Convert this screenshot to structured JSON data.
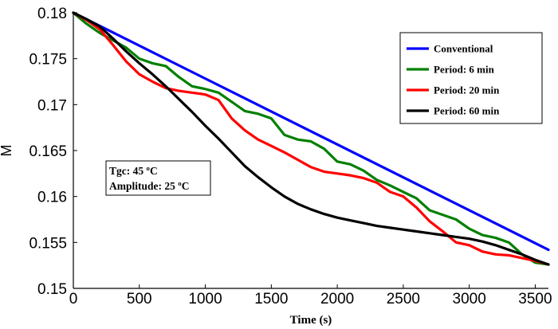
{
  "chart_data": {
    "type": "line",
    "title": "",
    "xlabel": "Time (s)",
    "ylabel": "M",
    "xlim": [
      0,
      3600
    ],
    "ylim": [
      0.15,
      0.18
    ],
    "xticks": [
      0,
      500,
      1000,
      1500,
      2000,
      2500,
      3000,
      3500
    ],
    "xtick_labels": [
      "0",
      "500",
      "1000",
      "1500",
      "2000",
      "2500",
      "3000",
      "3500"
    ],
    "yticks": [
      0.15,
      0.155,
      0.16,
      0.165,
      0.17,
      0.175,
      0.18
    ],
    "ytick_labels": [
      "0.15",
      "0.155",
      "0.16",
      "0.165",
      "0.17",
      "0.175",
      "0.18"
    ],
    "grid": false,
    "legend_position": "top-right",
    "series": [
      {
        "name": "Conventional",
        "color": "#0000ff",
        "x": [
          0,
          3600
        ],
        "y": [
          0.18,
          0.1542
        ]
      },
      {
        "name": "Period: 6 min",
        "color": "#008000",
        "x": [
          0,
          100,
          200,
          300,
          400,
          500,
          600,
          700,
          800,
          900,
          1000,
          1100,
          1200,
          1300,
          1400,
          1500,
          1600,
          1700,
          1800,
          1900,
          2000,
          2100,
          2200,
          2300,
          2400,
          2500,
          2600,
          2700,
          2800,
          2900,
          3000,
          3100,
          3200,
          3300,
          3400,
          3500,
          3600
        ],
        "y": [
          0.18,
          0.1788,
          0.1778,
          0.177,
          0.1762,
          0.175,
          0.1745,
          0.1742,
          0.173,
          0.172,
          0.1717,
          0.1713,
          0.1703,
          0.1693,
          0.169,
          0.1685,
          0.1667,
          0.1662,
          0.166,
          0.1652,
          0.1638,
          0.1635,
          0.1628,
          0.1618,
          0.1612,
          0.1605,
          0.1598,
          0.1585,
          0.158,
          0.1575,
          0.1565,
          0.1558,
          0.1555,
          0.155,
          0.1537,
          0.1528,
          0.1526
        ]
      },
      {
        "name": "Period: 20 min",
        "color": "#ff0000",
        "x": [
          0,
          100,
          200,
          300,
          400,
          500,
          600,
          700,
          800,
          900,
          1000,
          1100,
          1200,
          1300,
          1400,
          1500,
          1600,
          1700,
          1800,
          1900,
          2000,
          2100,
          2200,
          2300,
          2400,
          2500,
          2600,
          2700,
          2800,
          2900,
          3000,
          3100,
          3200,
          3300,
          3400,
          3500,
          3600
        ],
        "y": [
          0.18,
          0.1792,
          0.1782,
          0.1765,
          0.1747,
          0.1733,
          0.1725,
          0.1718,
          0.1715,
          0.1713,
          0.1711,
          0.1705,
          0.1685,
          0.1672,
          0.1662,
          0.1655,
          0.1648,
          0.164,
          0.1632,
          0.1627,
          0.1625,
          0.1623,
          0.162,
          0.1615,
          0.1605,
          0.16,
          0.1588,
          0.1573,
          0.1562,
          0.155,
          0.1547,
          0.154,
          0.1537,
          0.1536,
          0.1533,
          0.153,
          0.1526
        ]
      },
      {
        "name": "Period: 60 min",
        "color": "#000000",
        "x": [
          0,
          100,
          200,
          300,
          400,
          500,
          600,
          700,
          800,
          900,
          1000,
          1100,
          1200,
          1300,
          1400,
          1500,
          1600,
          1700,
          1800,
          1900,
          2000,
          2100,
          2200,
          2300,
          2400,
          2500,
          2600,
          2700,
          2800,
          2900,
          3000,
          3100,
          3200,
          3300,
          3400,
          3500,
          3600
        ],
        "y": [
          0.18,
          0.1793,
          0.1785,
          0.1772,
          0.1758,
          0.1745,
          0.1733,
          0.172,
          0.1706,
          0.1692,
          0.1677,
          0.1663,
          0.1648,
          0.1633,
          0.1621,
          0.161,
          0.16,
          0.1592,
          0.1586,
          0.1581,
          0.1577,
          0.1574,
          0.1571,
          0.1568,
          0.1566,
          0.1564,
          0.1562,
          0.156,
          0.1558,
          0.1556,
          0.1554,
          0.1551,
          0.1547,
          0.1542,
          0.1537,
          0.1531,
          0.1526
        ]
      }
    ],
    "annotation": {
      "lines": [
        "Tgc: 45 ºC",
        "Amplitude: 25 ºC"
      ]
    }
  }
}
